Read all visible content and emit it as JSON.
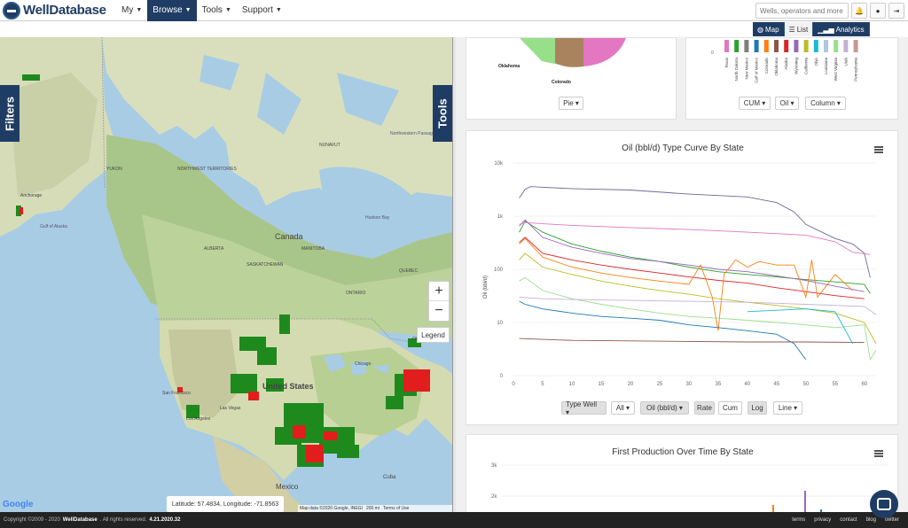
{
  "navbar": {
    "brand": "WellDatabase",
    "menu": [
      {
        "label": "My",
        "active": false
      },
      {
        "label": "Browse",
        "active": true
      },
      {
        "label": "Tools",
        "active": false
      },
      {
        "label": "Support",
        "active": false
      }
    ],
    "search_placeholder": "Wells, operators and more",
    "icons": [
      "bell-icon",
      "user-icon",
      "sign-out-icon"
    ]
  },
  "view_toggle": [
    {
      "label": "Map",
      "icon": "globe-icon",
      "active": false
    },
    {
      "label": "List",
      "icon": "list-icon",
      "active": true
    },
    {
      "label": "Analytics",
      "icon": "bar-chart-icon",
      "active": false
    }
  ],
  "map": {
    "filters_tab": "Filters",
    "tools_tab": "Tools",
    "zoom_in": "+",
    "zoom_out": "−",
    "legend": "Legend",
    "coordinates": "Latitude: 57.4834, Longitude: -71.8563",
    "google": "Google",
    "attribution": [
      "Map data ©2020 Google, INEGI",
      "200 mi",
      "Terms of Use"
    ],
    "labels": [
      {
        "text": "Canada",
        "type": "country"
      },
      {
        "text": "United States",
        "type": "country"
      },
      {
        "text": "Mexico",
        "type": "country"
      },
      {
        "text": "Cuba",
        "type": "place"
      },
      {
        "text": "Gulf of Alaska",
        "type": "water"
      },
      {
        "text": "Hudson Bay",
        "type": "water"
      },
      {
        "text": "Northwestern Passages",
        "type": "water"
      },
      {
        "text": "NUNAVUT",
        "type": "region"
      },
      {
        "text": "NORTHWEST TERRITORIES",
        "type": "region"
      },
      {
        "text": "YUKON",
        "type": "region"
      },
      {
        "text": "ALBERTA",
        "type": "region"
      },
      {
        "text": "SASKATCHEWAN",
        "type": "region"
      },
      {
        "text": "MANITOBA",
        "type": "region"
      },
      {
        "text": "ONTARIO",
        "type": "region"
      },
      {
        "text": "QUEBEC",
        "type": "region"
      },
      {
        "text": "Anchorage",
        "type": "city"
      },
      {
        "text": "Las Vegas",
        "type": "city"
      },
      {
        "text": "Chicago",
        "type": "city"
      },
      {
        "text": "Ottawa",
        "type": "city"
      },
      {
        "text": "San Francisco",
        "type": "city"
      },
      {
        "text": "Los Angeles",
        "type": "city"
      }
    ]
  },
  "top_cards": {
    "pie_labels": [
      "Oklahoma",
      "Colorado"
    ],
    "pie_button": "Pie",
    "states": [
      "Texas",
      "North Dakota",
      "New Mexico",
      "Gulf of Mexico",
      "Colorado",
      "Oklahoma",
      "Alaska",
      "Wyoming",
      "California",
      "Ohio",
      "Louisiana",
      "West Virginia",
      "Utah",
      "Pennsylvania"
    ],
    "state_colors": [
      "#e377c2",
      "#2ca02c",
      "#7f7f7f",
      "#1f77b4",
      "#ff7f0e",
      "#8c564b",
      "#d62728",
      "#9467bd",
      "#bcbd22",
      "#17becf",
      "#aec7e8",
      "#98df8a",
      "#c5b0d5",
      "#c49c94"
    ],
    "y_zero": "0",
    "buttons": [
      "CUM",
      "Oil",
      "Column"
    ]
  },
  "type_curve": {
    "title": "Oil (bbl/d) Type Curve By State",
    "ylabel": "Oil (bbl/d)",
    "y_ticks": [
      "10k",
      "1k",
      "100",
      "10",
      "0"
    ],
    "x_ticks": [
      "0",
      "5",
      "10",
      "15",
      "20",
      "25",
      "30",
      "35",
      "40",
      "45",
      "50",
      "55",
      "60"
    ],
    "buttons": [
      {
        "label": "Type Well",
        "caret": true,
        "gray": true
      },
      {
        "label": "All",
        "caret": true,
        "gray": false
      },
      {
        "label": "Oil (bbl/d)",
        "caret": true,
        "gray": true
      },
      {
        "label": "Rate",
        "caret": false,
        "gray": true
      },
      {
        "label": "Cum",
        "caret": false,
        "gray": false
      },
      {
        "label": "Log",
        "caret": false,
        "gray": true
      },
      {
        "label": "Line",
        "caret": true,
        "gray": false
      }
    ]
  },
  "first_production": {
    "title": "First Production Over Time By State",
    "y_ticks": [
      "3k",
      "2k"
    ]
  },
  "footer": {
    "copyright": "Copyright ©2009 - 2020",
    "brand": "WellDatabase",
    "rights": ". All rights reserved.",
    "version": "4.21.2020.32",
    "links": [
      "terms",
      "privacy",
      "contact",
      "blog",
      "twitter"
    ]
  },
  "chart_data": {
    "type": "line",
    "title": "Oil (bbl/d) Type Curve By State",
    "xlabel": "",
    "ylabel": "Oil (bbl/d)",
    "yscale": "log",
    "xlim": [
      0,
      62
    ],
    "ylim": [
      1,
      10000
    ],
    "grid": true,
    "series": [
      {
        "color": "#6a6a9a",
        "x": [
          1,
          2,
          3,
          5,
          10,
          20,
          30,
          40,
          45,
          48,
          50,
          55,
          58,
          60,
          61
        ],
        "y": [
          2200,
          3200,
          3600,
          3500,
          3300,
          3100,
          2600,
          2300,
          1800,
          1200,
          700,
          380,
          300,
          200,
          70
        ]
      },
      {
        "color": "#2ca02c",
        "x": [
          1,
          2,
          5,
          10,
          15,
          20,
          25,
          30,
          35,
          40,
          45,
          50,
          55,
          60,
          61
        ],
        "y": [
          500,
          800,
          500,
          300,
          220,
          170,
          140,
          110,
          90,
          80,
          72,
          64,
          58,
          52,
          35
        ]
      },
      {
        "color": "#9467bd",
        "x": [
          1,
          2,
          5,
          10,
          15,
          20,
          25,
          30,
          35,
          40,
          45,
          50,
          55,
          60
        ],
        "y": [
          650,
          850,
          400,
          260,
          200,
          160,
          140,
          120,
          100,
          90,
          75,
          62,
          48,
          38
        ]
      },
      {
        "color": "#e377c2",
        "x": [
          1,
          2,
          5,
          10,
          20,
          30,
          40,
          50,
          55,
          58,
          61
        ],
        "y": [
          700,
          760,
          720,
          670,
          610,
          560,
          500,
          440,
          330,
          210,
          190
        ]
      },
      {
        "color": "#d62728",
        "x": [
          1,
          2,
          5,
          10,
          15,
          20,
          25,
          30,
          35,
          40,
          45,
          50,
          55,
          60
        ],
        "y": [
          320,
          400,
          200,
          150,
          120,
          100,
          85,
          72,
          62,
          55,
          45,
          38,
          32,
          28
        ]
      },
      {
        "color": "#ff7f0e",
        "x": [
          1,
          2,
          5,
          10,
          15,
          20,
          25,
          30,
          32,
          34,
          35,
          36,
          38,
          40,
          42,
          45,
          48,
          50,
          51,
          52,
          55,
          58
        ],
        "y": [
          300,
          380,
          170,
          110,
          85,
          70,
          60,
          52,
          120,
          30,
          7,
          80,
          150,
          110,
          140,
          120,
          120,
          30,
          150,
          30,
          80,
          40
        ]
      },
      {
        "color": "#bcbd22",
        "x": [
          1,
          2,
          5,
          10,
          15,
          20,
          25,
          30,
          35,
          40,
          45,
          50,
          55,
          60,
          62
        ],
        "y": [
          150,
          200,
          110,
          80,
          60,
          48,
          40,
          34,
          28,
          24,
          21,
          18,
          15,
          10,
          4
        ]
      },
      {
        "color": "#1f77b4",
        "x": [
          1,
          2,
          5,
          10,
          15,
          20,
          25,
          30,
          35,
          40,
          45,
          48,
          50
        ],
        "y": [
          25,
          22,
          18,
          15,
          13,
          12,
          11,
          9,
          8,
          7,
          6,
          4,
          2
        ]
      },
      {
        "color": "#98df8a",
        "x": [
          1,
          2,
          5,
          10,
          15,
          20,
          25,
          30,
          35,
          40,
          45,
          50,
          55,
          60,
          61,
          62
        ],
        "y": [
          60,
          70,
          40,
          28,
          22,
          18,
          15,
          13,
          12,
          11,
          10,
          9,
          8,
          9,
          2,
          3
        ]
      },
      {
        "color": "#c5b0d5",
        "x": [
          1,
          5,
          10,
          20,
          30,
          40,
          50,
          60,
          62
        ],
        "y": [
          30,
          28,
          27,
          26,
          25,
          24,
          22,
          20,
          14
        ]
      },
      {
        "color": "#8c564b",
        "x": [
          1,
          5,
          10,
          20,
          30,
          40,
          50,
          60
        ],
        "y": [
          5,
          4.8,
          4.6,
          4.5,
          4.4,
          4.3,
          4.3,
          4.2
        ]
      },
      {
        "color": "#17becf",
        "x": [
          40,
          45,
          50,
          55,
          58
        ],
        "y": [
          16,
          17,
          18,
          16,
          4
        ]
      }
    ]
  }
}
